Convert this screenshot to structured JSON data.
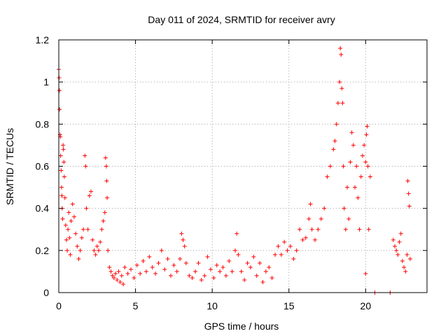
{
  "chart_data": {
    "type": "scatter",
    "title": "Day 011 of 2024, SRMTID for receiver avry",
    "xlabel": "GPS time / hours",
    "ylabel": "SRMTID / TECUs",
    "xlim": [
      0,
      24
    ],
    "ylim": [
      0,
      1.2
    ],
    "grid": true,
    "marker": "+",
    "color": "#ff0000",
    "x_ticks": [
      0,
      5,
      10,
      15,
      20
    ],
    "x_tick_labels": [
      "0",
      "5",
      "10",
      "15",
      "20"
    ],
    "y_ticks": [
      0,
      0.2,
      0.4,
      0.6,
      0.8,
      1.0,
      1.2
    ],
    "y_tick_labels": [
      "0",
      "0.2",
      "0.4",
      "0.6",
      "0.8",
      "1",
      "1.2"
    ],
    "series": [
      {
        "name": "SRMTID",
        "points": [
          [
            0.0,
            1.06
          ],
          [
            0.02,
            1.02
          ],
          [
            0.04,
            0.96
          ],
          [
            0.05,
            0.87
          ],
          [
            0.08,
            0.75
          ],
          [
            0.1,
            0.74
          ],
          [
            0.12,
            0.65
          ],
          [
            0.15,
            0.58
          ],
          [
            0.18,
            0.5
          ],
          [
            0.2,
            0.46
          ],
          [
            0.22,
            0.4
          ],
          [
            0.25,
            0.35
          ],
          [
            0.28,
            0.7
          ],
          [
            0.3,
            0.68
          ],
          [
            0.33,
            0.62
          ],
          [
            0.36,
            0.55
          ],
          [
            0.4,
            0.45
          ],
          [
            0.45,
            0.32
          ],
          [
            0.5,
            0.25
          ],
          [
            0.55,
            0.2
          ],
          [
            0.6,
            0.3
          ],
          [
            0.65,
            0.38
          ],
          [
            0.7,
            0.26
          ],
          [
            0.75,
            0.18
          ],
          [
            0.8,
            0.34
          ],
          [
            0.9,
            0.42
          ],
          [
            1.0,
            0.36
          ],
          [
            1.1,
            0.28
          ],
          [
            1.2,
            0.22
          ],
          [
            1.3,
            0.16
          ],
          [
            1.4,
            0.2
          ],
          [
            1.5,
            0.26
          ],
          [
            1.6,
            0.3
          ],
          [
            1.7,
            0.65
          ],
          [
            1.75,
            0.6
          ],
          [
            1.8,
            0.4
          ],
          [
            1.9,
            0.3
          ],
          [
            2.0,
            0.46
          ],
          [
            2.1,
            0.48
          ],
          [
            2.2,
            0.25
          ],
          [
            2.3,
            0.2
          ],
          [
            2.4,
            0.18
          ],
          [
            2.5,
            0.22
          ],
          [
            2.6,
            0.2
          ],
          [
            2.7,
            0.24
          ],
          [
            2.8,
            0.3
          ],
          [
            2.9,
            0.34
          ],
          [
            3.0,
            0.38
          ],
          [
            3.05,
            0.64
          ],
          [
            3.1,
            0.6
          ],
          [
            3.12,
            0.53
          ],
          [
            3.15,
            0.45
          ],
          [
            3.2,
            0.2
          ],
          [
            3.3,
            0.12
          ],
          [
            3.4,
            0.1
          ],
          [
            3.5,
            0.08
          ],
          [
            3.6,
            0.07
          ],
          [
            3.7,
            0.09
          ],
          [
            3.8,
            0.06
          ],
          [
            3.9,
            0.1
          ],
          [
            4.0,
            0.05
          ],
          [
            4.1,
            0.08
          ],
          [
            4.2,
            0.04
          ],
          [
            4.3,
            0.12
          ],
          [
            4.5,
            0.09
          ],
          [
            4.7,
            0.11
          ],
          [
            4.9,
            0.07
          ],
          [
            5.1,
            0.13
          ],
          [
            5.3,
            0.09
          ],
          [
            5.5,
            0.15
          ],
          [
            5.7,
            0.1
          ],
          [
            5.9,
            0.17
          ],
          [
            6.1,
            0.12
          ],
          [
            6.3,
            0.09
          ],
          [
            6.5,
            0.14
          ],
          [
            6.7,
            0.2
          ],
          [
            6.9,
            0.11
          ],
          [
            7.1,
            0.16
          ],
          [
            7.3,
            0.08
          ],
          [
            7.5,
            0.13
          ],
          [
            7.7,
            0.1
          ],
          [
            7.9,
            0.16
          ],
          [
            8.0,
            0.28
          ],
          [
            8.1,
            0.25
          ],
          [
            8.2,
            0.22
          ],
          [
            8.3,
            0.14
          ],
          [
            8.5,
            0.08
          ],
          [
            8.7,
            0.07
          ],
          [
            8.9,
            0.1
          ],
          [
            9.1,
            0.14
          ],
          [
            9.3,
            0.06
          ],
          [
            9.5,
            0.08
          ],
          [
            9.7,
            0.17
          ],
          [
            9.9,
            0.11
          ],
          [
            10.1,
            0.07
          ],
          [
            10.3,
            0.13
          ],
          [
            10.5,
            0.1
          ],
          [
            10.7,
            0.12
          ],
          [
            10.9,
            0.08
          ],
          [
            11.1,
            0.15
          ],
          [
            11.3,
            0.1
          ],
          [
            11.5,
            0.2
          ],
          [
            11.6,
            0.28
          ],
          [
            11.7,
            0.18
          ],
          [
            11.9,
            0.1
          ],
          [
            12.1,
            0.06
          ],
          [
            12.3,
            0.14
          ],
          [
            12.5,
            0.12
          ],
          [
            12.7,
            0.17
          ],
          [
            12.9,
            0.08
          ],
          [
            13.1,
            0.14
          ],
          [
            13.3,
            0.05
          ],
          [
            13.5,
            0.1
          ],
          [
            13.7,
            0.12
          ],
          [
            13.9,
            0.07
          ],
          [
            14.1,
            0.18
          ],
          [
            14.3,
            0.22
          ],
          [
            14.5,
            0.18
          ],
          [
            14.7,
            0.24
          ],
          [
            14.9,
            0.2
          ],
          [
            15.1,
            0.22
          ],
          [
            15.3,
            0.16
          ],
          [
            15.5,
            0.2
          ],
          [
            15.7,
            0.3
          ],
          [
            15.9,
            0.25
          ],
          [
            16.1,
            0.26
          ],
          [
            16.3,
            0.35
          ],
          [
            16.4,
            0.42
          ],
          [
            16.5,
            0.3
          ],
          [
            16.7,
            0.25
          ],
          [
            16.9,
            0.3
          ],
          [
            17.1,
            0.35
          ],
          [
            17.3,
            0.4
          ],
          [
            17.5,
            0.55
          ],
          [
            17.7,
            0.6
          ],
          [
            17.9,
            0.68
          ],
          [
            18.0,
            0.72
          ],
          [
            18.1,
            0.8
          ],
          [
            18.2,
            0.9
          ],
          [
            18.3,
            1.0
          ],
          [
            18.35,
            1.16
          ],
          [
            18.4,
            1.13
          ],
          [
            18.45,
            0.97
          ],
          [
            18.5,
            0.9
          ],
          [
            18.55,
            0.6
          ],
          [
            18.6,
            0.4
          ],
          [
            18.7,
            0.3
          ],
          [
            18.8,
            0.5
          ],
          [
            18.9,
            0.35
          ],
          [
            19.0,
            0.62
          ],
          [
            19.1,
            0.76
          ],
          [
            19.2,
            0.7
          ],
          [
            19.3,
            0.5
          ],
          [
            19.4,
            0.6
          ],
          [
            19.5,
            0.45
          ],
          [
            19.6,
            0.3
          ],
          [
            19.7,
            0.55
          ],
          [
            19.8,
            0.65
          ],
          [
            19.9,
            0.7
          ],
          [
            20.0,
            0.62
          ],
          [
            20.05,
            0.75
          ],
          [
            20.1,
            0.79
          ],
          [
            20.15,
            0.6
          ],
          [
            20.2,
            0.3
          ],
          [
            20.3,
            0.55
          ],
          [
            20.0,
            0.09
          ],
          [
            20.6,
            0.0
          ],
          [
            21.6,
            0.0
          ],
          [
            21.8,
            0.25
          ],
          [
            21.9,
            0.22
          ],
          [
            22.0,
            0.2
          ],
          [
            22.1,
            0.18
          ],
          [
            22.2,
            0.24
          ],
          [
            22.3,
            0.28
          ],
          [
            22.4,
            0.15
          ],
          [
            22.5,
            0.12
          ],
          [
            22.6,
            0.1
          ],
          [
            22.7,
            0.18
          ],
          [
            22.75,
            0.53
          ],
          [
            22.8,
            0.47
          ],
          [
            22.85,
            0.41
          ],
          [
            22.9,
            0.16
          ]
        ]
      }
    ]
  }
}
